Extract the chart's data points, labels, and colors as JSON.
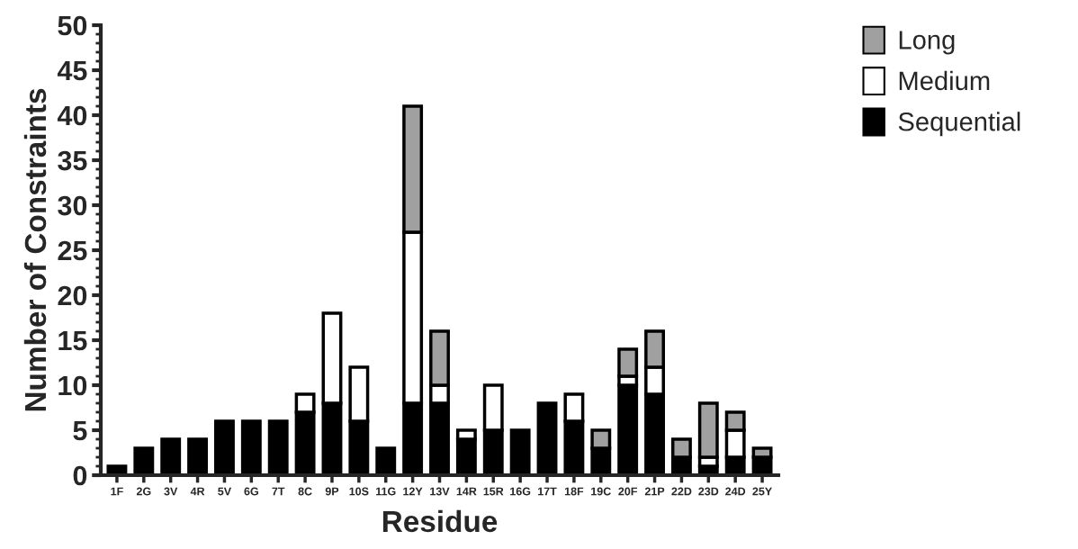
{
  "chart_data": {
    "type": "bar",
    "stacked": true,
    "xlabel": "Residue",
    "ylabel": "Number of Constraints",
    "categories": [
      "1F",
      "2G",
      "3V",
      "4R",
      "5V",
      "6G",
      "7T",
      "8C",
      "9P",
      "10S",
      "11G",
      "12Y",
      "13V",
      "14R",
      "15R",
      "16G",
      "17T",
      "18F",
      "19C",
      "20F",
      "21P",
      "22D",
      "23D",
      "24D",
      "25Y"
    ],
    "series": [
      {
        "name": "Sequential",
        "color": "#000000",
        "values": [
          1,
          3,
          4,
          4,
          6,
          6,
          6,
          7,
          8,
          6,
          3,
          8,
          8,
          4,
          5,
          5,
          8,
          6,
          3,
          10,
          9,
          2,
          1,
          2,
          2
        ]
      },
      {
        "name": "Medium",
        "color": "#ffffff",
        "values": [
          0,
          0,
          0,
          0,
          0,
          0,
          0,
          2,
          10,
          6,
          0,
          19,
          2,
          1,
          5,
          0,
          0,
          3,
          0,
          1,
          3,
          0,
          1,
          3,
          0
        ]
      },
      {
        "name": "Long",
        "color": "#a0a0a0",
        "values": [
          0,
          0,
          0,
          0,
          0,
          0,
          0,
          0,
          0,
          0,
          0,
          14,
          6,
          0,
          0,
          0,
          0,
          0,
          2,
          3,
          4,
          2,
          6,
          2,
          1
        ]
      }
    ],
    "ylim": [
      0,
      50
    ],
    "yticks": [
      0,
      5,
      10,
      15,
      20,
      25,
      30,
      35,
      40,
      45,
      50
    ],
    "grid": false,
    "legend": "top right"
  }
}
